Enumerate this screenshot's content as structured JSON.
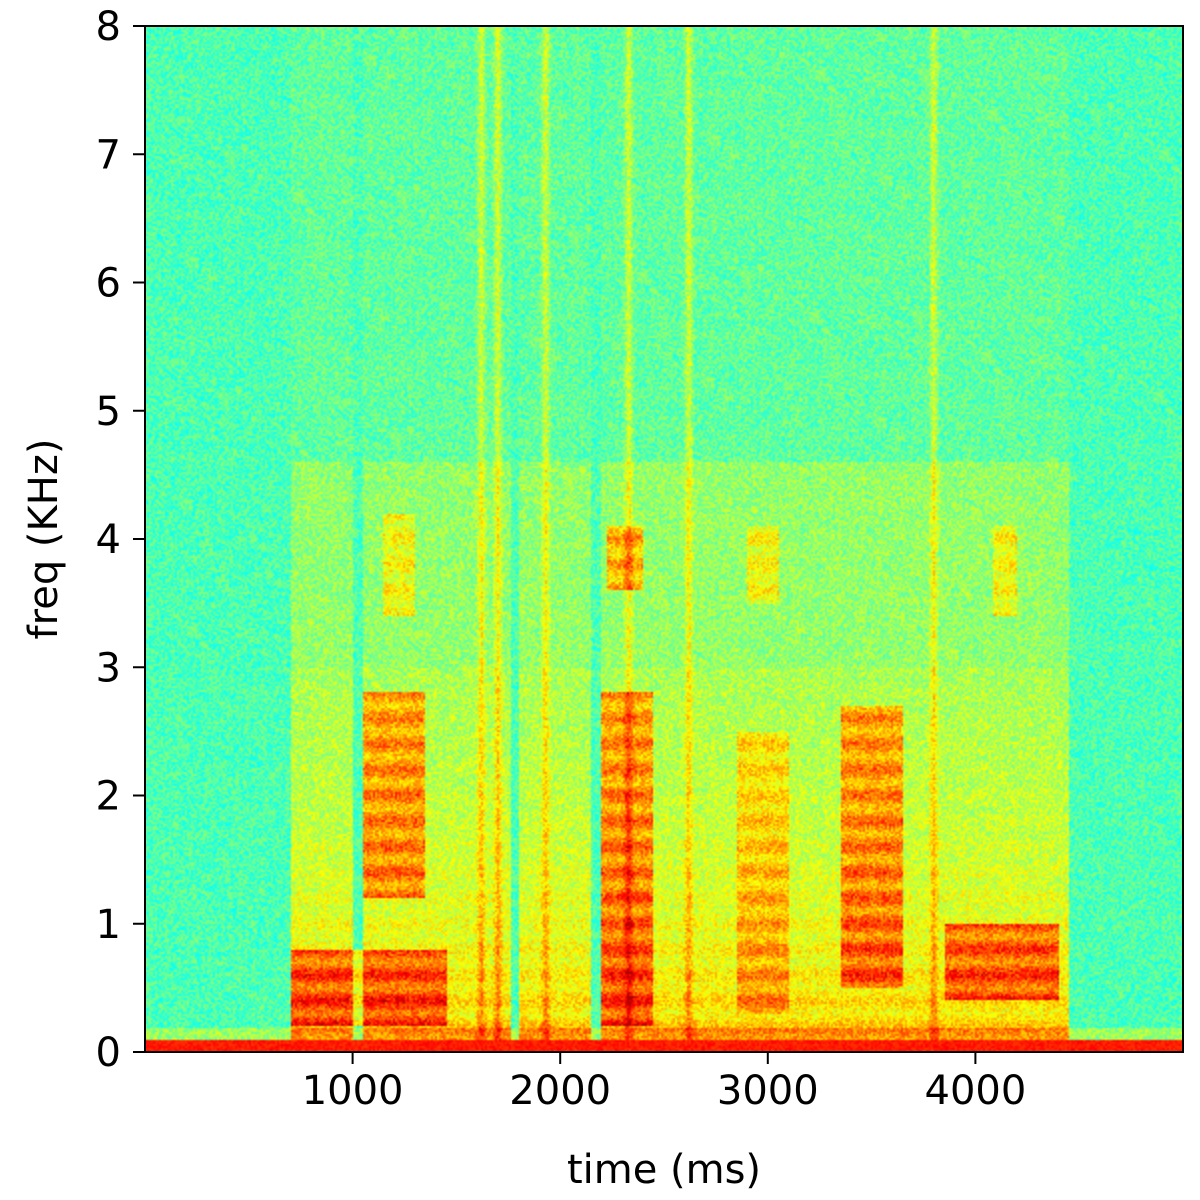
{
  "chart_data": {
    "type": "heatmap",
    "title": "",
    "xlabel": "time (ms)",
    "ylabel": "freq (KHz)",
    "xlim": [
      0,
      5000
    ],
    "ylim": [
      0,
      8
    ],
    "xticks": [
      {
        "value": 1000,
        "label": "1000"
      },
      {
        "value": 2000,
        "label": "2000"
      },
      {
        "value": 3000,
        "label": "3000"
      },
      {
        "value": 4000,
        "label": "4000"
      }
    ],
    "yticks": [
      {
        "value": 0,
        "label": "0"
      },
      {
        "value": 1,
        "label": "1"
      },
      {
        "value": 2,
        "label": "2"
      },
      {
        "value": 3,
        "label": "3"
      },
      {
        "value": 4,
        "label": "4"
      },
      {
        "value": 5,
        "label": "5"
      },
      {
        "value": 6,
        "label": "6"
      },
      {
        "value": 7,
        "label": "7"
      },
      {
        "value": 8,
        "label": "8"
      }
    ],
    "grid": false,
    "legend": "none",
    "colormap": "jet",
    "colors": {
      "background": "#43e58f",
      "mid": "#b4f22e",
      "high": "#f3892a",
      "peak": "#b62c05"
    },
    "speech_segments_ms": [
      [
        700,
        1000
      ],
      [
        1050,
        1480
      ],
      [
        1480,
        1760
      ],
      [
        1800,
        2150
      ],
      [
        2200,
        2560
      ],
      [
        2560,
        2850
      ],
      [
        2850,
        3250
      ],
      [
        3250,
        3850
      ],
      [
        3850,
        4450
      ]
    ],
    "broadband_bursts_ms": [
      1620,
      1700,
      1930,
      2330,
      2620,
      3800
    ],
    "formant_regions": [
      {
        "t": [
          700,
          1450
        ],
        "f": [
          0.2,
          0.8
        ],
        "level": "peak"
      },
      {
        "t": [
          1050,
          1350
        ],
        "f": [
          1.2,
          2.8
        ],
        "level": "peak"
      },
      {
        "t": [
          1150,
          1300
        ],
        "f": [
          3.4,
          4.2
        ],
        "level": "high"
      },
      {
        "t": [
          2200,
          2450
        ],
        "f": [
          0.2,
          2.8
        ],
        "level": "peak"
      },
      {
        "t": [
          2230,
          2400
        ],
        "f": [
          3.6,
          4.1
        ],
        "level": "peak"
      },
      {
        "t": [
          2850,
          3100
        ],
        "f": [
          0.3,
          2.5
        ],
        "level": "high"
      },
      {
        "t": [
          2900,
          3050
        ],
        "f": [
          3.5,
          4.1
        ],
        "level": "high"
      },
      {
        "t": [
          3350,
          3650
        ],
        "f": [
          0.5,
          2.7
        ],
        "level": "peak"
      },
      {
        "t": [
          3850,
          4400
        ],
        "f": [
          0.4,
          1.0
        ],
        "level": "peak"
      },
      {
        "t": [
          4080,
          4200
        ],
        "f": [
          3.4,
          4.1
        ],
        "level": "high"
      }
    ]
  }
}
